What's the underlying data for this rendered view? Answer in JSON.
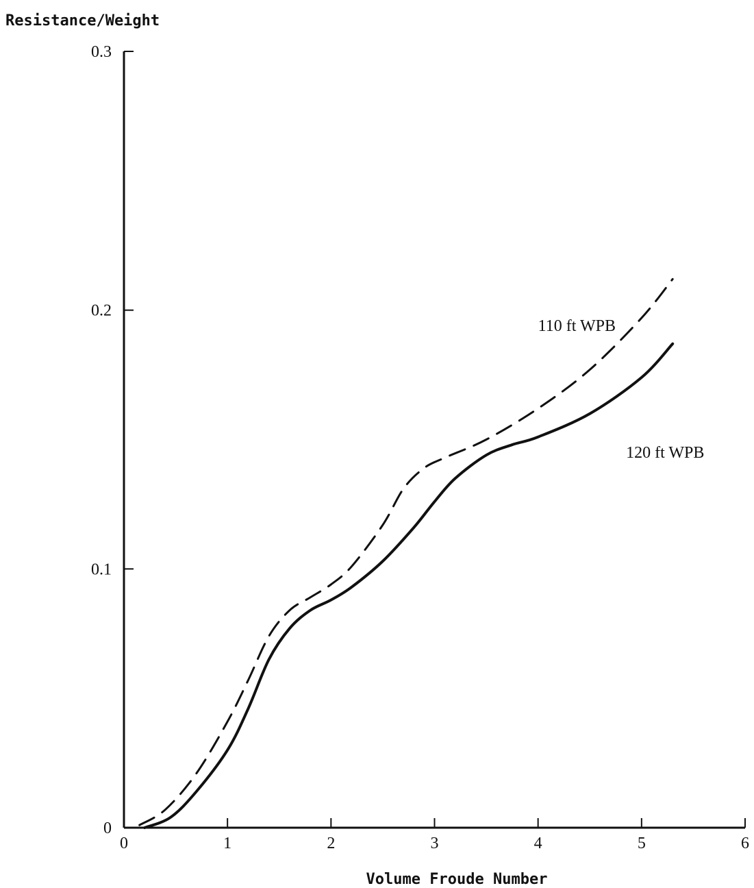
{
  "chart_data": {
    "type": "line",
    "xlabel": "Volume Froude Number",
    "ylabel": "Resistance/Weight",
    "xlim": [
      0,
      6
    ],
    "ylim": [
      0,
      0.3
    ],
    "x_ticks": [
      "0",
      "1",
      "2",
      "3",
      "4",
      "5",
      "6"
    ],
    "y_ticks": [
      "0",
      "0.1",
      "0.2",
      "0.3"
    ],
    "grid": false,
    "legend": "none",
    "series": [
      {
        "name": "110 ft WPB",
        "style": "dashed",
        "color": "#111111",
        "x": [
          0.15,
          0.4,
          0.7,
          1.0,
          1.2,
          1.4,
          1.6,
          1.8,
          2.0,
          2.2,
          2.5,
          2.7,
          2.9,
          3.1,
          3.5,
          4.0,
          4.5,
          5.0,
          5.3
        ],
        "y": [
          0.001,
          0.007,
          0.021,
          0.041,
          0.057,
          0.074,
          0.084,
          0.089,
          0.094,
          0.101,
          0.117,
          0.131,
          0.139,
          0.143,
          0.15,
          0.162,
          0.177,
          0.197,
          0.212
        ]
      },
      {
        "name": "120 ft WPB",
        "style": "solid",
        "color": "#111111",
        "x": [
          0.2,
          0.45,
          0.7,
          1.0,
          1.2,
          1.4,
          1.6,
          1.8,
          2.0,
          2.2,
          2.5,
          2.8,
          3.0,
          3.2,
          3.5,
          3.75,
          4.0,
          4.5,
          5.0,
          5.3
        ],
        "y": [
          0.0,
          0.004,
          0.014,
          0.03,
          0.046,
          0.065,
          0.077,
          0.084,
          0.088,
          0.093,
          0.103,
          0.116,
          0.126,
          0.135,
          0.144,
          0.148,
          0.151,
          0.16,
          0.174,
          0.187
        ]
      }
    ],
    "annotations": [
      {
        "text": "110 ft WPB",
        "x": 4.0,
        "y": 0.192
      },
      {
        "text": "120 ft WPB",
        "x": 4.85,
        "y": 0.143
      }
    ]
  }
}
